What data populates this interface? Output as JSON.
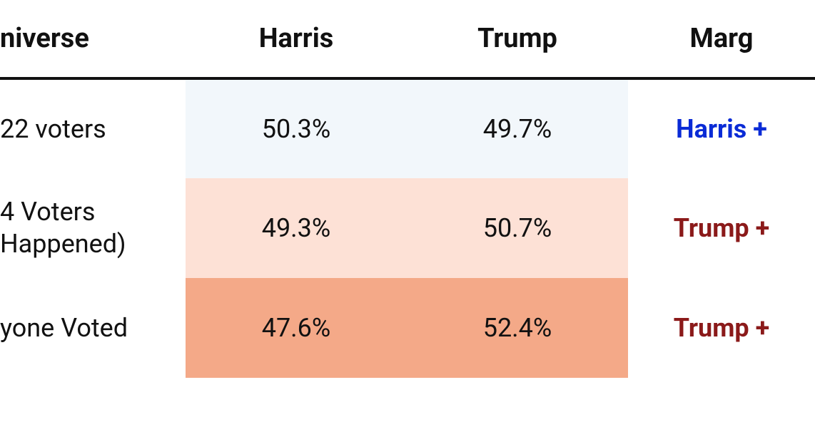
{
  "table": {
    "columns": [
      "niverse",
      "Harris",
      "Trump",
      "Marg"
    ],
    "row_bg_colors": [
      "#f2f7fb",
      "#fde1d6",
      "#f4a988"
    ],
    "margin_color_classes": [
      "margin-blue",
      "margin-red",
      "margin-red"
    ],
    "rows": [
      {
        "universe": "22 voters",
        "harris": "50.3%",
        "trump": "49.7%",
        "margin": "Harris +"
      },
      {
        "universe": "4 Voters\nHappened)",
        "harris": "49.3%",
        "trump": "50.7%",
        "margin": "Trump +"
      },
      {
        "universe": "yone Voted",
        "harris": "47.6%",
        "trump": "52.4%",
        "margin": "Trump +"
      }
    ],
    "header_fontsize": 38,
    "cell_fontsize": 36,
    "border_color": "#111111",
    "background_color": "#ffffff",
    "blue_hex": "#0a2bd6",
    "red_hex": "#8b1a1a"
  }
}
